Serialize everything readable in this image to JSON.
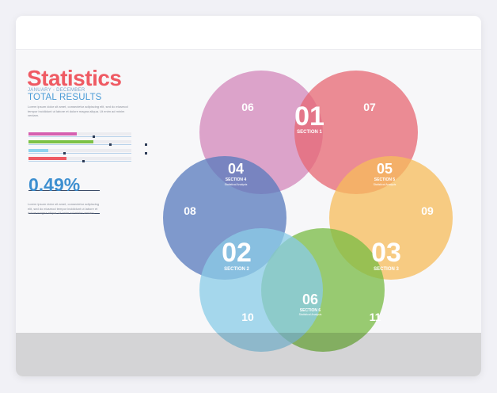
{
  "header": {
    "title": "Statistics",
    "subtitle": "JANUARY - DECEMBER",
    "total": "TOTAL RESULTS",
    "lorem_top": "Lorem ipsum dolor sit amet, consectetur adipiscing elit, sed do eiusmod tempor incididunt ut labore et dolore magna aliqua. Ut enim ad minim veniam."
  },
  "progress_bars": [
    {
      "name": "magenta",
      "color": "#d65fb0",
      "fill": 0.47
    },
    {
      "name": "green",
      "color": "#7cc246",
      "fill": 0.63
    },
    {
      "name": "light-blue",
      "color": "#8fd3ee",
      "fill": 0.19
    },
    {
      "name": "red",
      "color": "#ef5a63",
      "fill": 0.37
    }
  ],
  "stat": {
    "percent": "0.49%",
    "lorem": "Lorem ipsum dolor sit amet, consectetur adipiscing elit, sed do eiusmod tempor incididunt ut labore et dolore magna aliqua. Ut enim ad minim veniam."
  },
  "diagram": {
    "circles": [
      {
        "name": "pink",
        "color": "#d98bbf"
      },
      {
        "name": "red",
        "color": "#ef6b76"
      },
      {
        "name": "orange",
        "color": "#ffc35c"
      },
      {
        "name": "blue",
        "color": "#5a7ec2"
      },
      {
        "name": "green",
        "color": "#7cc246"
      },
      {
        "name": "sky",
        "color": "#8fd3ee"
      }
    ],
    "labels": {
      "n06_top": "06",
      "n07": "07",
      "n08": "08",
      "n09": "09",
      "n10": "10",
      "n11": "11",
      "n01": "01",
      "s1": "SECTION 1",
      "n02": "02",
      "s2": "SECTION 2",
      "n03": "03",
      "s3": "SECTION 3",
      "n04": "04",
      "s4": "SECTION 4",
      "sa4": "Statistical Analysis",
      "n05": "05",
      "s5": "SECTION 5",
      "sa5": "Statistical Analysis",
      "n06_bottom": "06",
      "s6": "SECTION 6",
      "sa6": "Statistical Analysis"
    }
  }
}
